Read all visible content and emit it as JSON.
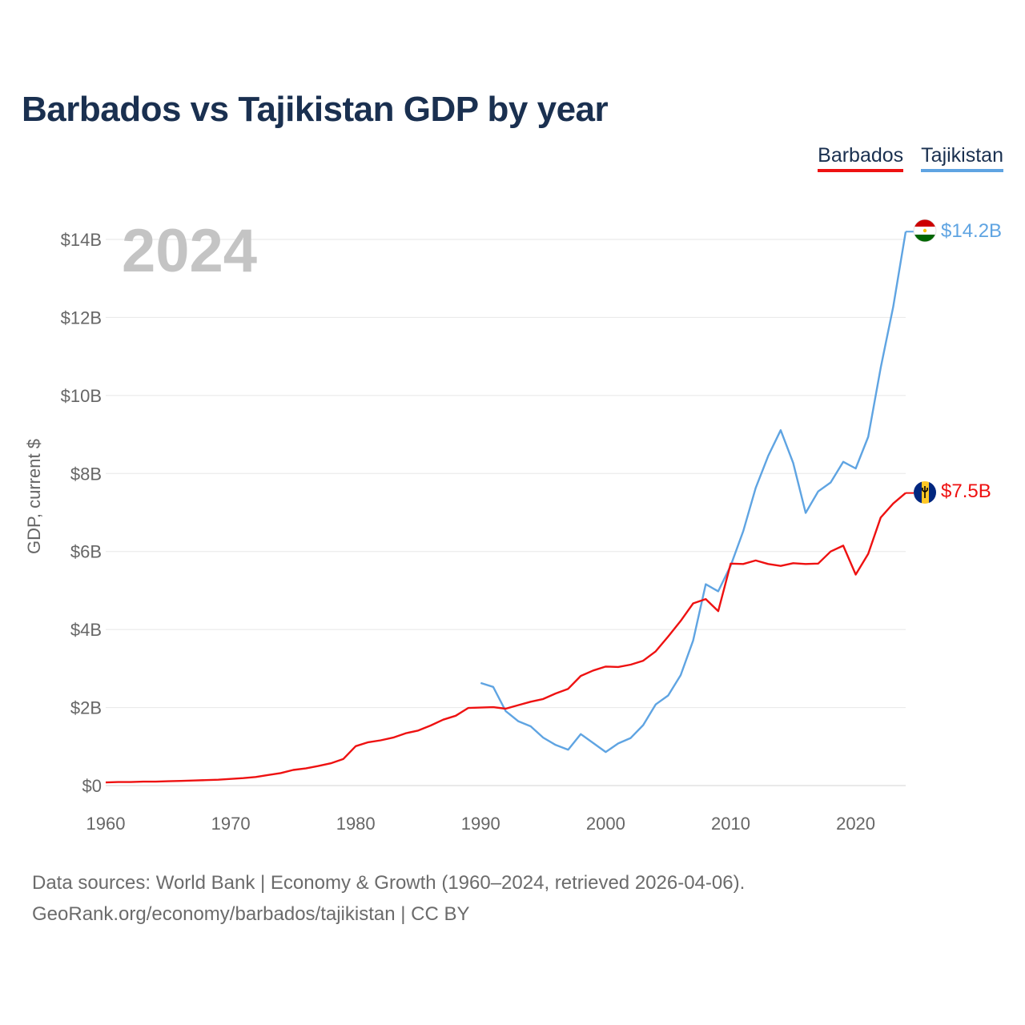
{
  "chart_data": {
    "type": "line",
    "title": "Barbados vs Tajikistan GDP by year",
    "year_label": "2024",
    "ylabel": "GDP, current $",
    "xlabel": "",
    "xlim": [
      1960,
      2024
    ],
    "ylim": [
      0,
      14.2
    ],
    "x_ticks": [
      1960,
      1970,
      1980,
      1990,
      2000,
      2010,
      2020
    ],
    "x_tick_labels": [
      "1960",
      "1970",
      "1980",
      "1990",
      "2000",
      "2010",
      "2020"
    ],
    "y_ticks": [
      0,
      2,
      4,
      6,
      8,
      10,
      12,
      14
    ],
    "y_tick_labels": [
      "$0",
      "$2B",
      "$4B",
      "$6B",
      "$8B",
      "$10B",
      "$12B",
      "$14B"
    ],
    "grid": true,
    "legend_position": "top-right",
    "series": [
      {
        "name": "Barbados",
        "color": "#ee1111",
        "end_label": "$7.5B",
        "x": [
          1960,
          1961,
          1962,
          1963,
          1964,
          1965,
          1966,
          1967,
          1968,
          1969,
          1970,
          1971,
          1972,
          1973,
          1974,
          1975,
          1976,
          1977,
          1978,
          1979,
          1980,
          1981,
          1982,
          1983,
          1984,
          1985,
          1986,
          1987,
          1988,
          1989,
          1990,
          1991,
          1992,
          1993,
          1994,
          1995,
          1996,
          1997,
          1998,
          1999,
          2000,
          2001,
          2002,
          2003,
          2004,
          2005,
          2006,
          2007,
          2008,
          2009,
          2010,
          2011,
          2012,
          2013,
          2014,
          2015,
          2016,
          2017,
          2018,
          2019,
          2020,
          2021,
          2022,
          2023,
          2024
        ],
        "values": [
          0.08,
          0.09,
          0.09,
          0.1,
          0.1,
          0.11,
          0.12,
          0.13,
          0.14,
          0.15,
          0.17,
          0.19,
          0.22,
          0.27,
          0.32,
          0.4,
          0.44,
          0.5,
          0.57,
          0.68,
          1.01,
          1.11,
          1.16,
          1.23,
          1.34,
          1.41,
          1.54,
          1.69,
          1.79,
          1.99,
          2.0,
          2.01,
          1.97,
          2.06,
          2.15,
          2.22,
          2.36,
          2.48,
          2.81,
          2.95,
          3.05,
          3.04,
          3.1,
          3.2,
          3.44,
          3.82,
          4.22,
          4.67,
          4.78,
          4.47,
          5.69,
          5.68,
          5.77,
          5.68,
          5.63,
          5.7,
          5.68,
          5.69,
          6.0,
          6.15,
          5.41,
          5.94,
          6.87,
          7.23,
          7.5
        ]
      },
      {
        "name": "Tajikistan",
        "color": "#5fa4e2",
        "end_label": "$14.2B",
        "x": [
          1990,
          1991,
          1992,
          1993,
          1994,
          1995,
          1996,
          1997,
          1998,
          1999,
          2000,
          2001,
          2002,
          2003,
          2004,
          2005,
          2006,
          2007,
          2008,
          2009,
          2010,
          2011,
          2012,
          2013,
          2014,
          2015,
          2016,
          2017,
          2018,
          2019,
          2020,
          2021,
          2022,
          2023,
          2024
        ],
        "values": [
          2.63,
          2.53,
          1.91,
          1.65,
          1.52,
          1.23,
          1.04,
          0.92,
          1.32,
          1.09,
          0.86,
          1.08,
          1.22,
          1.55,
          2.08,
          2.31,
          2.83,
          3.72,
          5.16,
          4.98,
          5.64,
          6.52,
          7.63,
          8.45,
          9.11,
          8.27,
          6.99,
          7.54,
          7.77,
          8.3,
          8.13,
          8.94,
          10.71,
          12.27,
          14.2
        ]
      }
    ],
    "sources": "Data sources: World Bank | Economy & Growth (1960–2024, retrieved 2026-04-06).",
    "credit": "GeoRank.org/economy/barbados/tajikistan | CC BY"
  }
}
